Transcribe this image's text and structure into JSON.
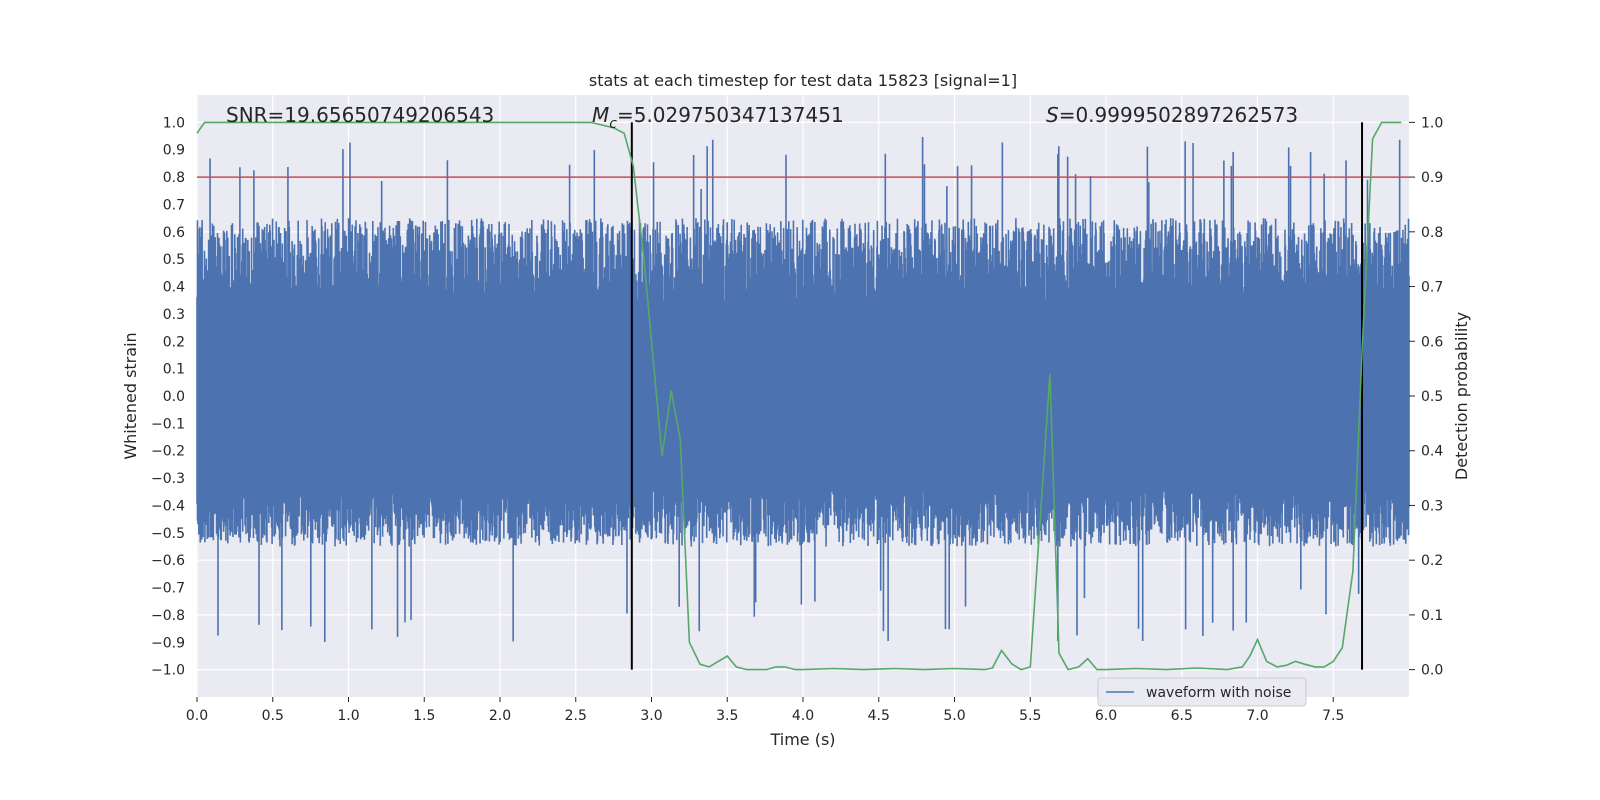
{
  "chart_data": {
    "type": "line",
    "title": "stats at each timestep for test data 15823 [signal=1]",
    "xlabel": "Time (s)",
    "ylabel_left": "Whitened strain",
    "ylabel_right": "Detection probability",
    "xlim": [
      0,
      8
    ],
    "ylim_left": [
      -1.1,
      1.1
    ],
    "ylim_right": [
      -0.05,
      1.05
    ],
    "x_ticks": [
      0,
      0.5,
      1,
      1.5,
      2,
      2.5,
      3,
      3.5,
      4,
      4.5,
      5,
      5.5,
      6,
      6.5,
      7,
      7.5
    ],
    "x_tick_labels": [
      "0.0",
      "0.5",
      "1.0",
      "1.5",
      "2.0",
      "2.5",
      "3.0",
      "3.5",
      "4.0",
      "4.5",
      "5.0",
      "5.5",
      "6.0",
      "6.5",
      "7.0",
      "7.5"
    ],
    "y_left_ticks": [
      -1.0,
      -0.9,
      -0.8,
      -0.7,
      -0.6,
      -0.5,
      -0.4,
      -0.3,
      -0.2,
      -0.1,
      0.0,
      0.1,
      0.2,
      0.3,
      0.4,
      0.5,
      0.6,
      0.7,
      0.8,
      0.9,
      1.0
    ],
    "y_left_tick_labels": [
      "−1.0",
      "−0.9",
      "−0.8",
      "−0.7",
      "−0.6",
      "−0.5",
      "−0.4",
      "−0.3",
      "−0.2",
      "−0.1",
      "0.0",
      "0.1",
      "0.2",
      "0.3",
      "0.4",
      "0.5",
      "0.6",
      "0.7",
      "0.8",
      "0.9",
      "1.0"
    ],
    "y_right_ticks": [
      0.0,
      0.1,
      0.2,
      0.3,
      0.4,
      0.5,
      0.6,
      0.7,
      0.8,
      0.9,
      1.0
    ],
    "y_right_tick_labels": [
      "0.0",
      "0.1",
      "0.2",
      "0.3",
      "0.4",
      "0.5",
      "0.6",
      "0.7",
      "0.8",
      "0.9",
      "1.0"
    ],
    "annotations": {
      "snr": "SNR=19.65650749206543",
      "mc_symbol": "M",
      "mc_sub": "c",
      "mc_value": "=5.029750347137451",
      "s_symbol": "S",
      "s_value": "=0.9999502897262573"
    },
    "threshold_right": 0.9,
    "vertical_lines_x": [
      2.87,
      7.69
    ],
    "waveform": {
      "name": "waveform with noise",
      "envelope_upper": 0.65,
      "envelope_lower": -0.55
    },
    "probability": {
      "x": [
        0.0,
        0.05,
        0.1,
        0.2,
        0.4,
        0.6,
        0.8,
        1.0,
        1.2,
        1.4,
        1.6,
        1.8,
        2.0,
        2.2,
        2.4,
        2.6,
        2.75,
        2.82,
        2.88,
        2.95,
        3.0,
        3.07,
        3.13,
        3.19,
        3.25,
        3.32,
        3.38,
        3.44,
        3.5,
        3.56,
        3.63,
        3.7,
        3.76,
        3.82,
        3.88,
        3.95,
        4.0,
        4.2,
        4.4,
        4.6,
        4.8,
        5.0,
        5.2,
        5.25,
        5.31,
        5.38,
        5.44,
        5.5,
        5.56,
        5.63,
        5.69,
        5.75,
        5.82,
        5.88,
        5.94,
        6.0,
        6.2,
        6.4,
        6.6,
        6.8,
        6.9,
        6.95,
        7.0,
        7.06,
        7.13,
        7.19,
        7.25,
        7.31,
        7.38,
        7.44,
        7.5,
        7.56,
        7.63,
        7.69,
        7.76,
        7.82,
        7.88,
        7.95
      ],
      "y": [
        0.98,
        1.0,
        1.0,
        1.0,
        1.0,
        1.0,
        1.0,
        1.0,
        1.0,
        1.0,
        1.0,
        1.0,
        1.0,
        1.0,
        1.0,
        1.0,
        0.99,
        0.98,
        0.92,
        0.75,
        0.6,
        0.39,
        0.51,
        0.42,
        0.05,
        0.01,
        0.005,
        0.015,
        0.025,
        0.005,
        0.0,
        0.0,
        0.0,
        0.005,
        0.005,
        0.0,
        0.0,
        0.002,
        0.0,
        0.002,
        0.0,
        0.002,
        0.0,
        0.003,
        0.035,
        0.01,
        0.0,
        0.005,
        0.25,
        0.54,
        0.03,
        0.0,
        0.005,
        0.02,
        0.0,
        0.0,
        0.002,
        0.0,
        0.003,
        0.0,
        0.005,
        0.025,
        0.055,
        0.015,
        0.005,
        0.008,
        0.015,
        0.01,
        0.005,
        0.005,
        0.015,
        0.04,
        0.18,
        0.58,
        0.97,
        1.0,
        1.0,
        1.0
      ]
    },
    "legend": {
      "label": "waveform with noise",
      "position": "lower-right"
    },
    "colors": {
      "waveform": "#4c72b0",
      "probability": "#55a868",
      "threshold": "#c44e52",
      "vline": "#000000",
      "plot_bg": "#eaeaf2",
      "grid": "#ffffff",
      "text": "#262626"
    }
  }
}
